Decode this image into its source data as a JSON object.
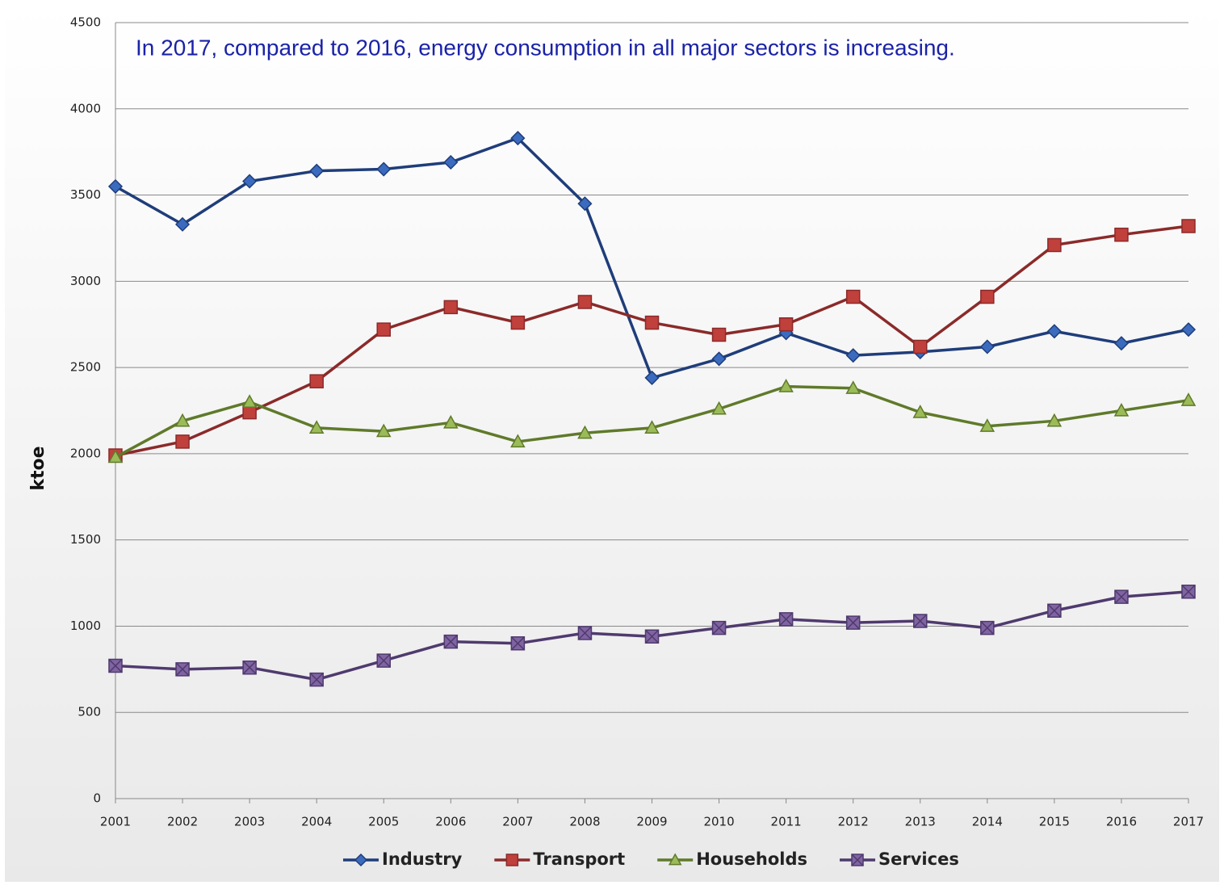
{
  "chart_data": {
    "type": "line",
    "annotation": "In 2017, compared to 2016, energy consumption in all major sectors is increasing.",
    "y_label": "ktoe",
    "categories": [
      "2001",
      "2002",
      "2003",
      "2004",
      "2005",
      "2006",
      "2007",
      "2008",
      "2009",
      "2010",
      "2011",
      "2012",
      "2013",
      "2014",
      "2015",
      "2016",
      "2017"
    ],
    "series": [
      {
        "name": "Industry",
        "color": "#1f3d7a",
        "marker": "diamond",
        "values": [
          3550,
          3330,
          3580,
          3640,
          3650,
          3690,
          3830,
          3450,
          2440,
          2550,
          2700,
          2570,
          2590,
          2620,
          2710,
          2640,
          2720
        ]
      },
      {
        "name": "Transport",
        "color": "#8b2a2a",
        "marker": "square",
        "values": [
          1990,
          2070,
          2240,
          2420,
          2720,
          2850,
          2760,
          2880,
          2760,
          2690,
          2750,
          2910,
          2620,
          2910,
          3210,
          3270,
          3320
        ]
      },
      {
        "name": "Households",
        "color": "#5f7a2a",
        "marker": "triangle",
        "values": [
          1980,
          2190,
          2300,
          2150,
          2130,
          2180,
          2070,
          2120,
          2150,
          2260,
          2390,
          2380,
          2240,
          2160,
          2190,
          2250,
          2310
        ]
      },
      {
        "name": "Services",
        "color": "#4f3a6e",
        "marker": "xsquare",
        "values": [
          770,
          750,
          760,
          690,
          800,
          910,
          900,
          960,
          940,
          990,
          1040,
          1020,
          1030,
          990,
          1090,
          1170,
          1200
        ]
      }
    ],
    "ylim": [
      0,
      4500
    ],
    "yticks": [
      0,
      500,
      1000,
      1500,
      2000,
      2500,
      3000,
      3500,
      4000,
      4500
    ],
    "grid": true,
    "legend": "bottom"
  }
}
